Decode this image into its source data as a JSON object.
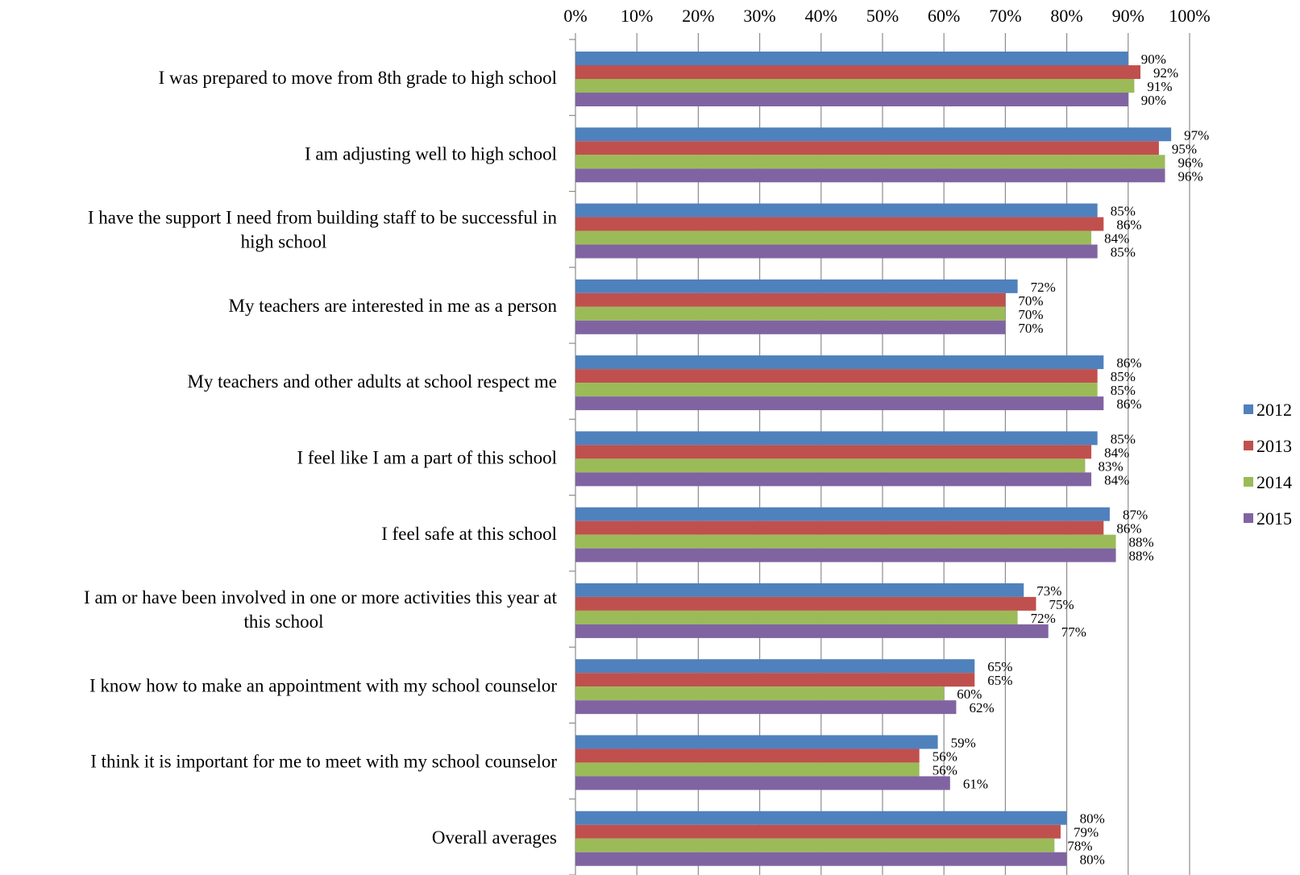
{
  "chart_data": {
    "type": "bar",
    "orientation": "horizontal",
    "title": "",
    "xlabel": "",
    "ylabel": "",
    "xlim": [
      0,
      100
    ],
    "x_ticks": [
      "0%",
      "10%",
      "20%",
      "30%",
      "40%",
      "50%",
      "60%",
      "70%",
      "80%",
      "90%",
      "100%"
    ],
    "grid": "vertical major gridlines",
    "legend_position": "right",
    "categories": [
      [
        "I was prepared to move from 8th grade to high school"
      ],
      [
        "I am adjusting well to high school"
      ],
      [
        "I have the support I need from building staff to be successful in",
        "high school"
      ],
      [
        "My teachers are interested in me as a person"
      ],
      [
        "My teachers and other adults at school respect me"
      ],
      [
        "I feel like I am a part of this school"
      ],
      [
        "I feel safe at this school"
      ],
      [
        "I am or have been involved in one or more activities this year at",
        "this school"
      ],
      [
        "I know how to make an appointment with my school counselor"
      ],
      [
        "I think it is important for me to meet with my school counselor"
      ],
      [
        "Overall averages"
      ]
    ],
    "series": [
      {
        "name": "2012",
        "color": "#4f81bd",
        "values": [
          90,
          97,
          85,
          72,
          86,
          85,
          87,
          73,
          65,
          59,
          80
        ]
      },
      {
        "name": "2013",
        "color": "#c0504d",
        "values": [
          92,
          95,
          86,
          70,
          85,
          84,
          86,
          75,
          65,
          56,
          79
        ]
      },
      {
        "name": "2014",
        "color": "#9bbb59",
        "values": [
          91,
          96,
          84,
          70,
          85,
          83,
          88,
          72,
          60,
          56,
          78
        ]
      },
      {
        "name": "2015",
        "color": "#8064a2",
        "values": [
          90,
          96,
          85,
          70,
          86,
          84,
          88,
          77,
          62,
          61,
          80
        ]
      }
    ]
  }
}
